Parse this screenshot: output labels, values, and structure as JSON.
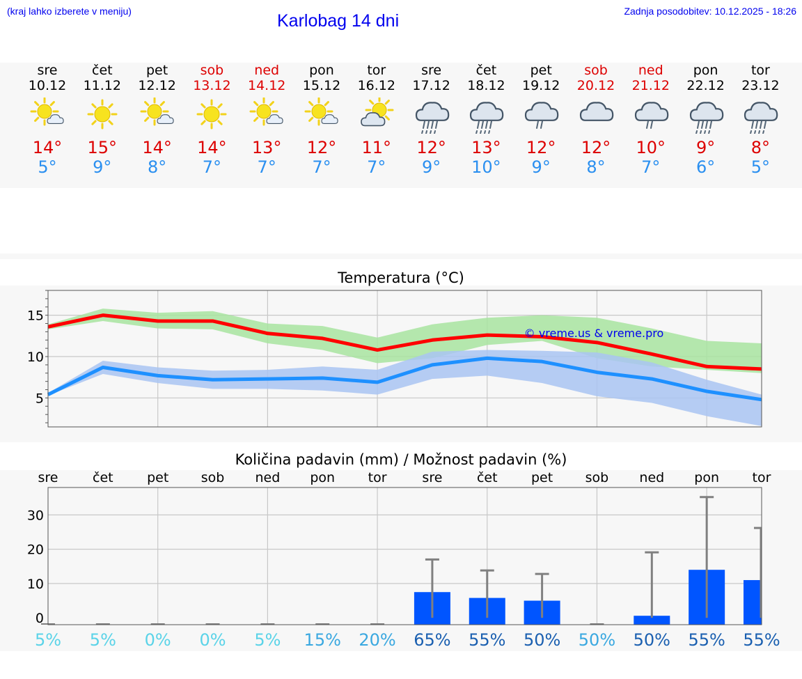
{
  "header": {
    "location_hint": "(kraj lahko izberete v meniju)",
    "title": "Karlobag 14 dni",
    "updated": "Zadnja posodobitev: 10.12.2025 - 18:26"
  },
  "colors": {
    "link": "#0000ee",
    "weekend": "#dd0000",
    "max_temp": "#dd0000",
    "min_temp": "#2a8ff0",
    "max_line": "#ff0000",
    "min_line": "#1e90ff",
    "max_band": "#a8e4a0",
    "min_band": "#a9c4f2",
    "bar": "#0055ff",
    "whisker": "#808080"
  },
  "days": [
    {
      "name": "sre",
      "date": "10.12",
      "max": "14°",
      "min": "5°",
      "weekend": false,
      "icon": "sun-cloud-icon"
    },
    {
      "name": "čet",
      "date": "11.12",
      "max": "15°",
      "min": "9°",
      "weekend": false,
      "icon": "sun-icon"
    },
    {
      "name": "pet",
      "date": "12.12",
      "max": "14°",
      "min": "8°",
      "weekend": false,
      "icon": "sun-cloud-icon"
    },
    {
      "name": "sob",
      "date": "13.12",
      "max": "14°",
      "min": "7°",
      "weekend": true,
      "icon": "sun-icon"
    },
    {
      "name": "ned",
      "date": "14.12",
      "max": "13°",
      "min": "7°",
      "weekend": true,
      "icon": "sun-cloud-icon"
    },
    {
      "name": "pon",
      "date": "15.12",
      "max": "12°",
      "min": "7°",
      "weekend": false,
      "icon": "sun-cloud-icon"
    },
    {
      "name": "tor",
      "date": "16.12",
      "max": "11°",
      "min": "7°",
      "weekend": false,
      "icon": "partly-cloudy-icon"
    },
    {
      "name": "sre",
      "date": "17.12",
      "max": "12°",
      "min": "9°",
      "weekend": false,
      "icon": "heavy-rain-icon"
    },
    {
      "name": "čet",
      "date": "18.12",
      "max": "13°",
      "min": "10°",
      "weekend": false,
      "icon": "rain-icon"
    },
    {
      "name": "pet",
      "date": "19.12",
      "max": "12°",
      "min": "9°",
      "weekend": false,
      "icon": "light-rain-icon"
    },
    {
      "name": "sob",
      "date": "20.12",
      "max": "12°",
      "min": "8°",
      "weekend": true,
      "icon": "cloudy-icon"
    },
    {
      "name": "ned",
      "date": "21.12",
      "max": "10°",
      "min": "7°",
      "weekend": true,
      "icon": "light-rain-icon"
    },
    {
      "name": "pon",
      "date": "22.12",
      "max": "9°",
      "min": "6°",
      "weekend": false,
      "icon": "heavy-rain-icon"
    },
    {
      "name": "tor",
      "date": "23.12",
      "max": "8°",
      "min": "5°",
      "weekend": false,
      "icon": "heavy-rain-icon"
    }
  ],
  "chart_data": [
    {
      "type": "line",
      "title": "Temperatura (°C)",
      "categories": [
        "10.12",
        "11.12",
        "12.12",
        "13.12",
        "14.12",
        "15.12",
        "16.12",
        "17.12",
        "18.12",
        "19.12",
        "20.12",
        "21.12",
        "22.12",
        "23.12"
      ],
      "ylim": [
        1.5,
        18
      ],
      "yticks": [
        5,
        10,
        15
      ],
      "watermark": "© vreme.us & vreme.pro",
      "series": [
        {
          "name": "max",
          "values": [
            13.6,
            15.0,
            14.3,
            14.3,
            12.8,
            12.2,
            10.8,
            12.0,
            12.6,
            12.4,
            11.7,
            10.3,
            8.8,
            8.5
          ]
        },
        {
          "name": "min",
          "values": [
            5.4,
            8.7,
            7.7,
            7.2,
            7.3,
            7.4,
            6.9,
            9.0,
            9.8,
            9.4,
            8.1,
            7.3,
            5.8,
            4.8
          ]
        }
      ],
      "bands": [
        {
          "name": "max_range",
          "upper": [
            13.9,
            15.8,
            15.3,
            15.5,
            14.0,
            13.7,
            12.3,
            13.9,
            14.7,
            15.0,
            14.7,
            13.4,
            11.9,
            11.6
          ],
          "lower": [
            13.3,
            14.3,
            13.4,
            13.3,
            11.6,
            10.8,
            9.2,
            9.8,
            11.4,
            11.9,
            9.8,
            8.8,
            8.4,
            8.0
          ]
        },
        {
          "name": "min_range",
          "upper": [
            5.6,
            9.5,
            8.7,
            8.3,
            8.4,
            8.8,
            8.4,
            10.6,
            10.8,
            10.7,
            10.5,
            9.3,
            7.2,
            5.4
          ],
          "lower": [
            5.3,
            7.9,
            6.8,
            6.1,
            6.1,
            5.9,
            5.4,
            7.3,
            7.7,
            6.8,
            5.2,
            4.4,
            2.8,
            1.6
          ]
        }
      ]
    },
    {
      "type": "bar",
      "title": "Količina padavin (mm) / Možnost padavin (%)",
      "categories": [
        "sre",
        "čet",
        "pet",
        "sob",
        "ned",
        "pon",
        "tor",
        "sre",
        "čet",
        "pet",
        "sob",
        "ned",
        "pon",
        "tor"
      ],
      "ylim": [
        -2,
        38
      ],
      "yticks": [
        0,
        10,
        20,
        30
      ],
      "values": [
        0,
        0,
        0,
        0,
        0,
        0,
        0,
        7.5,
        5.8,
        5.0,
        0,
        0.6,
        14,
        11
      ],
      "error_upper": [
        0,
        0,
        0,
        0,
        0,
        0,
        0,
        17,
        13.8,
        12.8,
        0,
        19.1,
        35.2,
        26.2
      ],
      "chance_labels": [
        "5%",
        "5%",
        "0%",
        "0%",
        "5%",
        "15%",
        "20%",
        "65%",
        "55%",
        "50%",
        "50%",
        "50%",
        "55%",
        "55%"
      ],
      "chance_colors": [
        "#5ad3e8",
        "#5ad3e8",
        "#5ad3e8",
        "#5ad3e8",
        "#5ad3e8",
        "#3aa8e0",
        "#3aa8e0",
        "#1a5fb0",
        "#1a5fb0",
        "#1a5fb0",
        "#3aa8e0",
        "#1a5fb0",
        "#1a5fb0",
        "#1a5fb0"
      ]
    }
  ]
}
